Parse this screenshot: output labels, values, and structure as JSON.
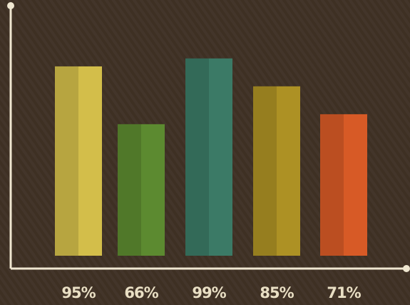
{
  "chart_data": {
    "type": "bar",
    "categories": [
      null,
      null,
      null,
      null,
      null
    ],
    "values": [
      95,
      66,
      99,
      85,
      71
    ],
    "value_labels": [
      "95%",
      "66%",
      "99%",
      "85%",
      "71%"
    ],
    "colors": [
      "#d3be4a",
      "#5c8a30",
      "#3b7a66",
      "#ad9124",
      "#d75a26"
    ]
  }
}
